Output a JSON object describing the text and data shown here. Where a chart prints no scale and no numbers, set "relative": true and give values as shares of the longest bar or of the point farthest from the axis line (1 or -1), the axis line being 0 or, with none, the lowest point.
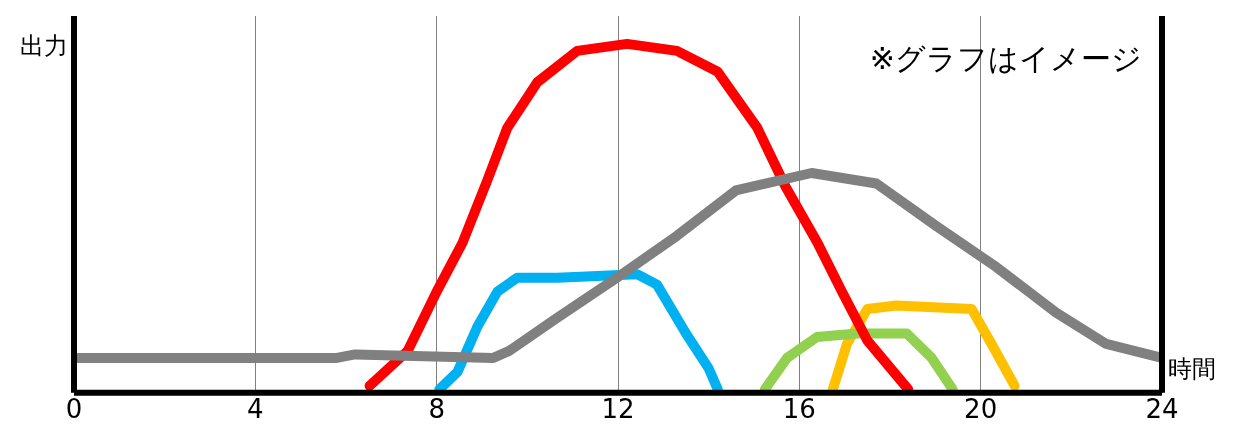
{
  "chart_data": {
    "type": "line",
    "relative": true,
    "ylabel": "出力",
    "xlabel": "時間",
    "annotations": [
      "※グラフはイメージ"
    ],
    "xlim": [
      0,
      24
    ],
    "xticks": [
      0,
      4,
      8,
      12,
      16,
      20,
      24
    ],
    "grid": "x",
    "legend": false,
    "series": [
      {
        "color": "#808080",
        "x": [
          0,
          3.6,
          5.8,
          6.2,
          9.25,
          9.6,
          10.6,
          11.98,
          13.3,
          14.6,
          16.27,
          17.7,
          19.0,
          20.35,
          21.66,
          22.77,
          24
        ],
        "values": [
          0.1,
          0.1,
          0.1,
          0.11,
          0.1,
          0.12,
          0.21,
          0.33,
          0.45,
          0.58,
          0.63,
          0.6,
          0.48,
          0.36,
          0.23,
          0.14,
          0.1
        ]
      },
      {
        "color": "#ff0000",
        "x": [
          6.52,
          7.36,
          8.0,
          8.57,
          9.12,
          9.56,
          10.22,
          11.1,
          12.2,
          13.3,
          14.2,
          15.07,
          15.7,
          16.4,
          16.94,
          17.5,
          18.4
        ],
        "values": [
          0.02,
          0.12,
          0.29,
          0.43,
          0.61,
          0.76,
          0.89,
          0.98,
          1,
          0.98,
          0.92,
          0.76,
          0.59,
          0.43,
          0.29,
          0.15,
          0.01
        ]
      },
      {
        "color": "#00b0f0",
        "x": [
          8.06,
          8.46,
          8.9,
          9.34,
          9.78,
          10.66,
          12.42,
          12.86,
          13.5,
          14.0,
          14.2
        ],
        "values": [
          0.01,
          0.06,
          0.19,
          0.29,
          0.33,
          0.33,
          0.34,
          0.31,
          0.17,
          0.07,
          0.01
        ]
      },
      {
        "color": "#92d050",
        "x": [
          15.24,
          15.73,
          16.39,
          17.27,
          18.37,
          18.92,
          19.38
        ],
        "values": [
          0.01,
          0.1,
          0.16,
          0.17,
          0.17,
          0.1,
          0.01
        ]
      },
      {
        "color": "#ffc000",
        "x": [
          16.74,
          17.05,
          17.5,
          18.14,
          19.8,
          20.24,
          20.75
        ],
        "values": [
          0.01,
          0.14,
          0.24,
          0.25,
          0.24,
          0.14,
          0.02
        ]
      }
    ]
  }
}
